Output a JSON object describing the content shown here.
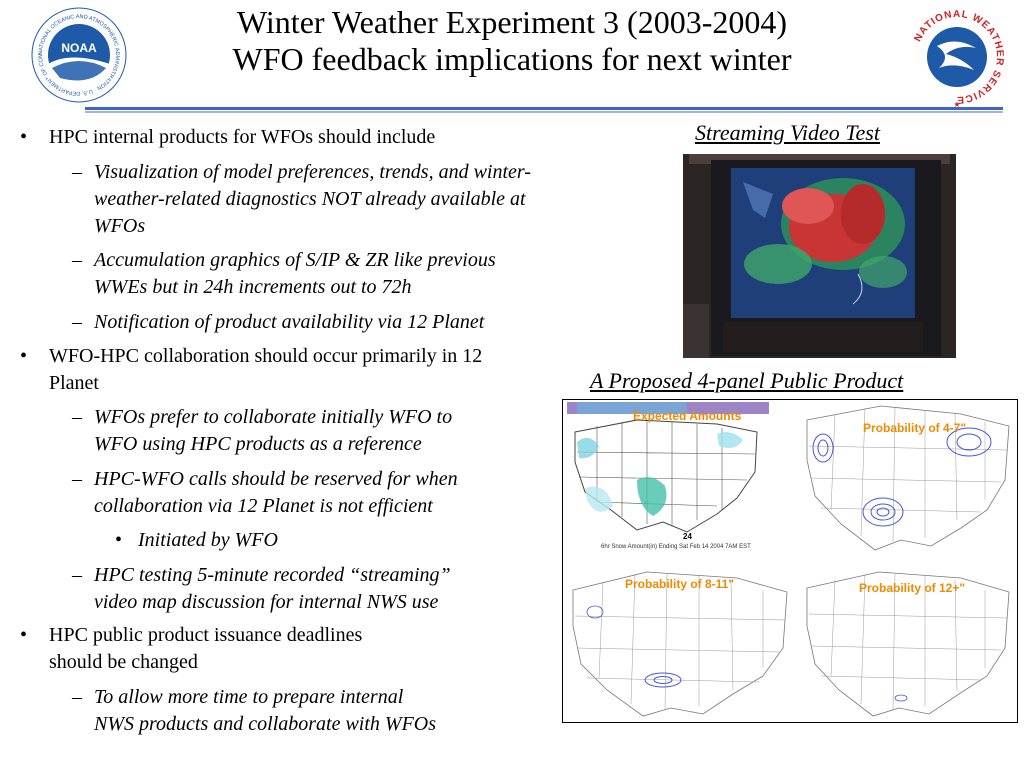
{
  "header": {
    "title_line1": "Winter Weather Experiment 3 (2003-2004)",
    "title_line2": "WFO feedback implications for next winter",
    "left_logo": {
      "acronym": "NOAA",
      "ring_text": "NATIONAL OCEANIC AND ATMOSPHERIC ADMINISTRATION · U.S. DEPARTMENT OF COMMERCE ·",
      "color": "#1e5aa8"
    },
    "right_logo": {
      "ring_text": "NATIONAL WEATHER SERVICE",
      "color": "#d21f1f"
    }
  },
  "bullets": [
    {
      "text": "HPC internal products for WFOs should include",
      "subs": [
        {
          "lines": [
            "Visualization of model preferences, trends, and winter-",
            "weather-related diagnostics NOT already available at",
            "WFOs"
          ]
        },
        {
          "lines": [
            "Accumulation graphics of S/IP & ZR like previous",
            "WWEs but in 24h increments out to 72h"
          ]
        },
        {
          "lines": [
            "Notification of product availability via 12 Planet"
          ]
        }
      ]
    },
    {
      "lines": [
        "WFO-HPC collaboration should occur primarily in 12",
        "Planet"
      ],
      "subs": [
        {
          "lines": [
            "WFOs prefer to collaborate initially WFO to",
            "WFO using HPC products as a reference"
          ]
        },
        {
          "lines": [
            "HPC-WFO calls should be reserved for when",
            "collaboration via 12 Planet is not efficient"
          ]
        },
        {
          "subsub": "Initiated by WFO"
        },
        {
          "lines": [
            "HPC testing 5-minute recorded “streaming”",
            "video map discussion for internal NWS use"
          ]
        }
      ]
    },
    {
      "lines": [
        "HPC public product issuance deadlines",
        "should be changed"
      ],
      "subs": [
        {
          "lines": [
            "To allow more time to prepare internal",
            "NWS products and collaborate with WFOs"
          ]
        }
      ]
    }
  ],
  "streaming": {
    "caption": "Streaming Video Test"
  },
  "four_panel": {
    "caption": "A Proposed 4-panel Public Product",
    "panels": {
      "tl": {
        "label": "Expected Amounts",
        "value": "24",
        "footer": "6hr Snow Amount(in) Ending Sat Feb 14 2004 7AM EST"
      },
      "tr": {
        "label": "Probability of 4-7\""
      },
      "bl": {
        "label": "Probability of 8-11\""
      },
      "br": {
        "label": "Probability of 12+\""
      }
    }
  },
  "bullet_symbols": {
    "bullet": "•",
    "dash": "–"
  }
}
